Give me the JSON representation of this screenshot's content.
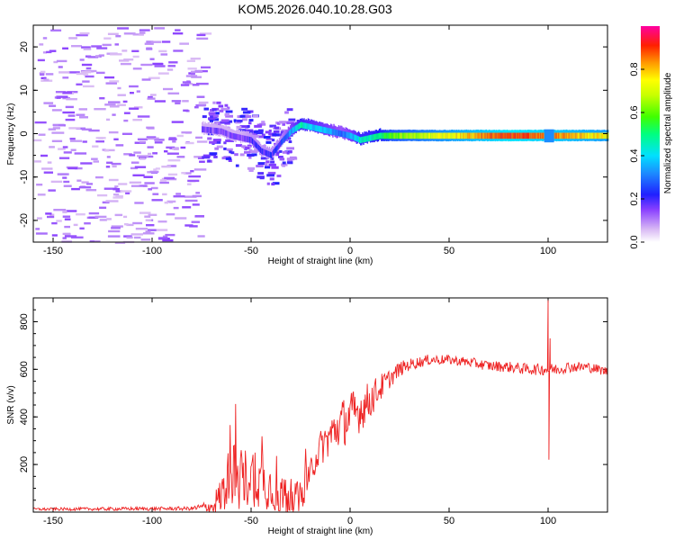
{
  "title": "KOM5.2026.040.10.28.G03",
  "chart_data": [
    {
      "type": "heatmap",
      "xlabel": "Height of straight line (km)",
      "ylabel": "Frequency (Hz)",
      "xlim": [
        -160,
        130
      ],
      "ylim": [
        -25,
        25
      ],
      "x_ticks": [
        -150,
        -100,
        -50,
        0,
        50,
        100
      ],
      "y_ticks": [
        -20,
        -10,
        0,
        10,
        20
      ],
      "colorbar": {
        "label": "Normalized spectral amplitude",
        "range": [
          0,
          1
        ],
        "ticks": [
          "0.0",
          "0.2",
          "0.4",
          "0.6",
          "0.8"
        ],
        "tick_values": [
          0,
          0.2,
          0.4,
          0.6,
          0.8
        ]
      },
      "ridge": {
        "x": [
          -75,
          -65,
          -60,
          -55,
          -50,
          -45,
          -40,
          -35,
          -30,
          -25,
          -20,
          -15,
          -10,
          -5,
          0,
          5,
          10,
          15,
          20,
          40,
          60,
          80,
          100,
          130
        ],
        "y": [
          1,
          0.5,
          -0.5,
          -1,
          -1.5,
          -4,
          -5,
          -2,
          0.5,
          2,
          1.5,
          1,
          0.5,
          0,
          -0.5,
          -1.5,
          -1,
          -0.5,
          -0.5,
          -0.5,
          -0.5,
          -0.5,
          -0.5,
          -0.5
        ],
        "amp": [
          0.15,
          0.15,
          0.15,
          0.15,
          0.2,
          0.2,
          0.2,
          0.22,
          0.35,
          0.45,
          0.4,
          0.38,
          0.35,
          0.3,
          0.35,
          0.45,
          0.45,
          0.5,
          0.6,
          0.7,
          0.8,
          0.9,
          0.85,
          0.75
        ]
      }
    },
    {
      "type": "line",
      "xlabel": "Height of straight line (km)",
      "ylabel": "SNR (v/v)",
      "xlim": [
        -160,
        130
      ],
      "ylim": [
        0,
        900
      ],
      "x_ticks": [
        -150,
        -100,
        -50,
        0,
        50,
        100
      ],
      "y_ticks": [
        200,
        400,
        600,
        800
      ],
      "series": [
        {
          "name": "SNR",
          "color": "#ee2222",
          "trend_x": [
            -160,
            -80,
            -70,
            -65,
            -60,
            -55,
            -50,
            -45,
            -40,
            -35,
            -30,
            -25,
            -20,
            -15,
            -10,
            -5,
            0,
            5,
            10,
            15,
            20,
            25,
            30,
            40,
            50,
            60,
            70,
            80,
            90,
            95,
            100,
            105,
            110,
            120,
            130
          ],
          "trend_y": [
            12,
            15,
            25,
            70,
            170,
            130,
            160,
            120,
            110,
            70,
            60,
            55,
            180,
            270,
            320,
            370,
            400,
            430,
            470,
            520,
            560,
            600,
            620,
            640,
            640,
            630,
            615,
            610,
            600,
            600,
            600,
            600,
            610,
            610,
            590
          ],
          "noise_x": [
            -160,
            -80,
            -70,
            -60,
            -50,
            -40,
            -30,
            -20,
            -10,
            0,
            10,
            20,
            30,
            50,
            100,
            130
          ],
          "noise_amp": [
            6,
            8,
            30,
            140,
            130,
            100,
            80,
            60,
            90,
            110,
            80,
            40,
            25,
            20,
            25,
            20
          ],
          "spikes": [
            {
              "x": 100,
              "y": 890
            },
            {
              "x": 100.4,
              "y": 220
            },
            {
              "x": 101,
              "y": 730
            }
          ]
        }
      ]
    }
  ]
}
